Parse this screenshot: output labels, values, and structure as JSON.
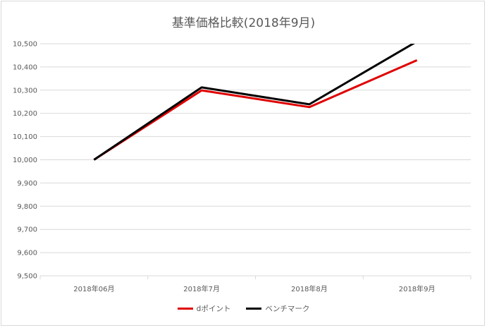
{
  "chart_data": {
    "type": "line",
    "title": "基準価格比較(2018年9月)",
    "categories": [
      "2018年06月",
      "2018年7月",
      "2018年8月",
      "2018年9月"
    ],
    "series": [
      {
        "name": "dポイント",
        "color": "#e00000",
        "values": [
          10000,
          10299,
          10227,
          10429
        ]
      },
      {
        "name": "ベンチマーク",
        "color": "#000000",
        "values": [
          10000,
          10312,
          10239,
          10510
        ]
      }
    ],
    "ylim": [
      9500,
      10500
    ],
    "yticks": [
      9500,
      9600,
      9700,
      9800,
      9900,
      10000,
      10100,
      10200,
      10300,
      10400,
      10500
    ],
    "ytick_labels": [
      "9,500",
      "9,600",
      "9,700",
      "9,800",
      "9,900",
      "10,000",
      "10,100",
      "10,200",
      "10,300",
      "10,400",
      "10,500"
    ],
    "grid": true,
    "legend_position": "bottom"
  }
}
